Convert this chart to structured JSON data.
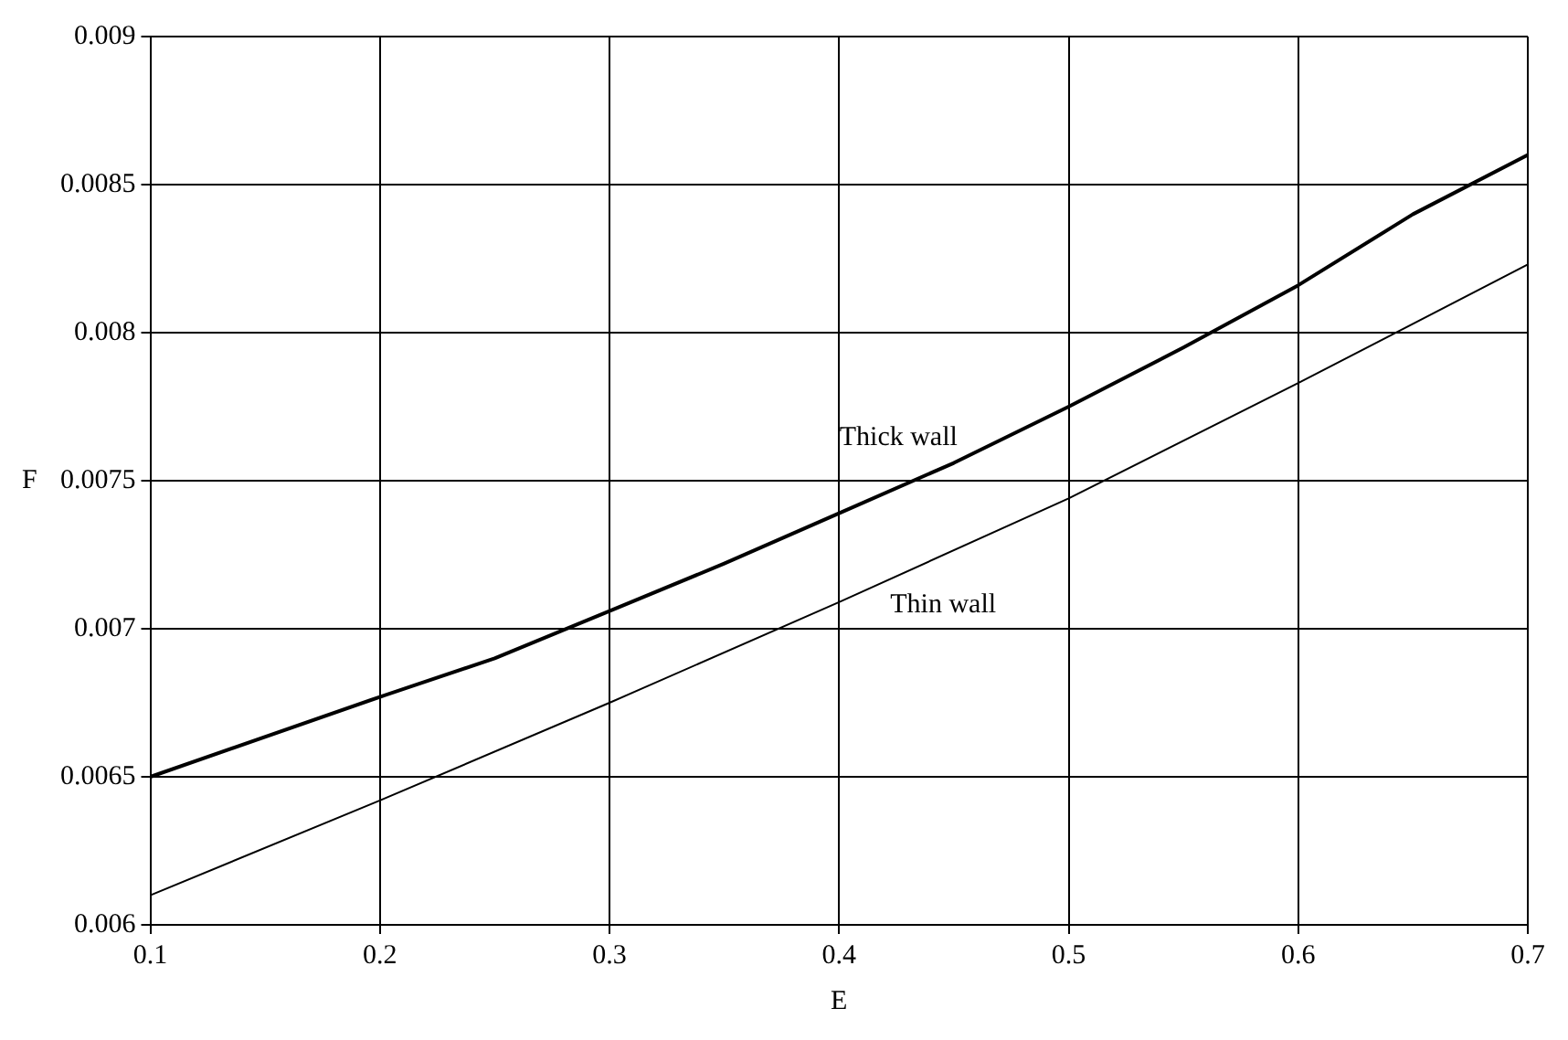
{
  "chart_data": {
    "type": "line",
    "xlabel": "E",
    "ylabel": "F",
    "xlim": [
      0.1,
      0.7
    ],
    "xticks": [
      0.1,
      0.2,
      0.3,
      0.4,
      0.5,
      0.6,
      0.7
    ],
    "ylim": [
      0.006,
      0.009
    ],
    "yticks": [
      0.006,
      0.0065,
      0.007,
      0.0075,
      0.008,
      0.0085,
      0.009
    ],
    "grid": true,
    "legend": false,
    "marker": "none",
    "line_style": "solid",
    "series": [
      {
        "name": "Thick wall",
        "color": "#000000",
        "x": [
          0.1,
          0.2,
          0.25,
          0.3,
          0.35,
          0.4,
          0.45,
          0.5,
          0.55,
          0.6,
          0.65,
          0.7
        ],
        "values": [
          0.0065,
          0.00677,
          0.0069,
          0.00706,
          0.00722,
          0.00739,
          0.00756,
          0.00775,
          0.00795,
          0.00816,
          0.0084,
          0.0086
        ]
      },
      {
        "name": "Thin wall",
        "color": "#000000",
        "x": [
          0.1,
          0.2,
          0.3,
          0.4,
          0.5,
          0.6,
          0.7
        ],
        "values": [
          0.0061,
          0.00642,
          0.00675,
          0.00709,
          0.00744,
          0.00783,
          0.00823
        ]
      }
    ]
  }
}
